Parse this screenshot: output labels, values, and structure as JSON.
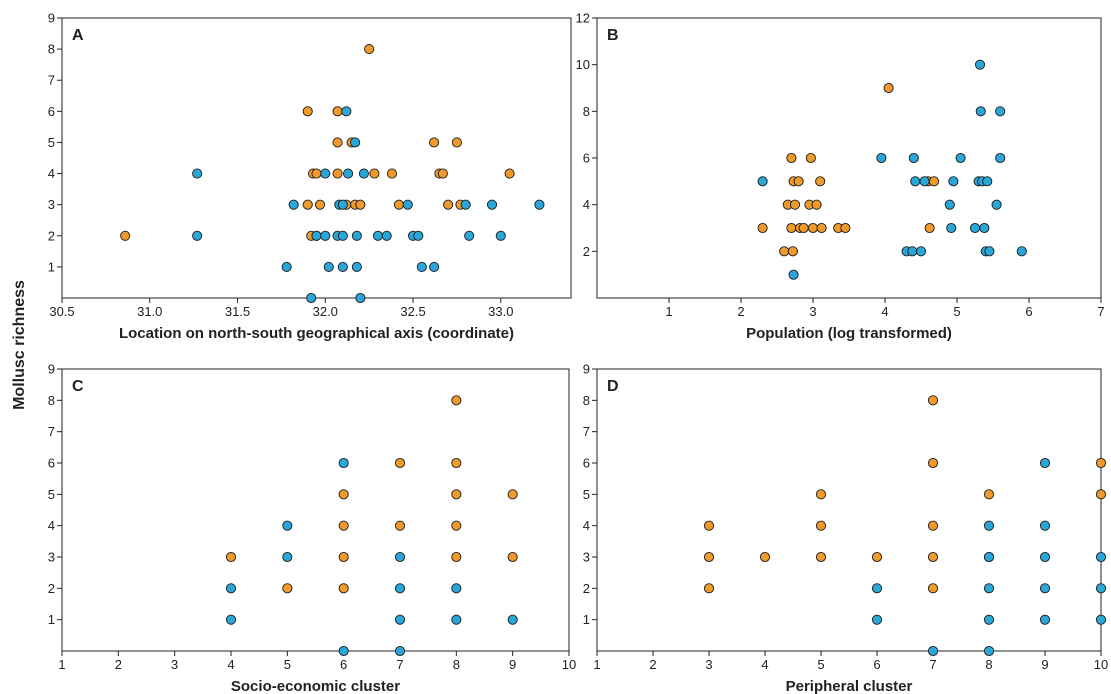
{
  "shared_ylabel": "Mollusc richness",
  "colors": {
    "orange": "#ef9a2a",
    "blue": "#2aa7d8",
    "stroke": "#1c1c1c"
  },
  "chart_data": [
    {
      "type": "scatter",
      "panel": "A",
      "xlabel": "Location on north-south geographical axis (coordinate)",
      "ylabel": "",
      "xlim": [
        30.5,
        33.4
      ],
      "ylim": [
        0,
        9
      ],
      "xticks": [
        30.5,
        31.0,
        31.5,
        32.0,
        32.5,
        33.0
      ],
      "xtick_labels": [
        "30.5",
        "31.0",
        "31.5",
        "32.0",
        "32.5",
        "33.0"
      ],
      "yticks": [
        1,
        2,
        3,
        4,
        5,
        6,
        7,
        8,
        9
      ],
      "grid": false,
      "series": [
        {
          "color": "orange",
          "points": [
            [
              30.86,
              2
            ],
            [
              31.9,
              6
            ],
            [
              31.9,
              3
            ],
            [
              31.93,
              4
            ],
            [
              31.95,
              4
            ],
            [
              31.92,
              2
            ],
            [
              31.95,
              2
            ],
            [
              31.97,
              3
            ],
            [
              32.07,
              6
            ],
            [
              32.07,
              5
            ],
            [
              32.07,
              4
            ],
            [
              32.12,
              3
            ],
            [
              32.15,
              5
            ],
            [
              32.17,
              3
            ],
            [
              32.2,
              3
            ],
            [
              32.25,
              8
            ],
            [
              32.28,
              4
            ],
            [
              32.38,
              4
            ],
            [
              32.42,
              3
            ],
            [
              32.62,
              5
            ],
            [
              32.65,
              4
            ],
            [
              32.67,
              4
            ],
            [
              32.7,
              3
            ],
            [
              32.75,
              5
            ],
            [
              32.77,
              3
            ],
            [
              33.05,
              4
            ]
          ]
        },
        {
          "color": "blue",
          "points": [
            [
              31.27,
              4
            ],
            [
              31.27,
              2
            ],
            [
              31.78,
              1
            ],
            [
              31.82,
              3
            ],
            [
              31.92,
              0
            ],
            [
              31.95,
              2
            ],
            [
              32.0,
              4
            ],
            [
              32.0,
              2
            ],
            [
              32.02,
              1
            ],
            [
              32.07,
              2
            ],
            [
              32.08,
              3
            ],
            [
              32.1,
              3
            ],
            [
              32.1,
              1
            ],
            [
              32.1,
              2
            ],
            [
              32.13,
              4
            ],
            [
              32.12,
              6
            ],
            [
              32.17,
              5
            ],
            [
              32.18,
              2
            ],
            [
              32.18,
              1
            ],
            [
              32.2,
              0
            ],
            [
              32.22,
              4
            ],
            [
              32.3,
              2
            ],
            [
              32.35,
              2
            ],
            [
              32.47,
              3
            ],
            [
              32.5,
              2
            ],
            [
              32.53,
              2
            ],
            [
              32.55,
              1
            ],
            [
              32.62,
              1
            ],
            [
              32.8,
              3
            ],
            [
              32.82,
              2
            ],
            [
              32.95,
              3
            ],
            [
              33.0,
              2
            ],
            [
              33.22,
              3
            ]
          ]
        }
      ]
    },
    {
      "type": "scatter",
      "panel": "B",
      "xlabel": "Population (log transformed)",
      "ylabel": "",
      "xlim": [
        0,
        7
      ],
      "ylim": [
        0,
        12
      ],
      "xticks": [
        1,
        2,
        3,
        4,
        5,
        6,
        7
      ],
      "xtick_labels": [
        "1",
        "2",
        "3",
        "4",
        "5",
        "6",
        "7"
      ],
      "yticks": [
        2,
        4,
        6,
        8,
        10,
        12
      ],
      "grid": false,
      "series": [
        {
          "color": "orange",
          "points": [
            [
              2.3,
              3
            ],
            [
              2.6,
              2
            ],
            [
              2.65,
              4
            ],
            [
              2.7,
              6
            ],
            [
              2.7,
              3
            ],
            [
              2.72,
              2
            ],
            [
              2.73,
              5
            ],
            [
              2.75,
              4
            ],
            [
              2.8,
              5
            ],
            [
              2.82,
              3
            ],
            [
              2.87,
              3
            ],
            [
              2.95,
              4
            ],
            [
              2.97,
              6
            ],
            [
              3.0,
              3
            ],
            [
              3.05,
              4
            ],
            [
              3.1,
              5
            ],
            [
              3.12,
              3
            ],
            [
              3.35,
              3
            ],
            [
              3.45,
              3
            ],
            [
              4.05,
              9
            ],
            [
              4.6,
              5
            ],
            [
              4.62,
              3
            ],
            [
              4.68,
              5
            ]
          ]
        },
        {
          "color": "blue",
          "points": [
            [
              2.3,
              5
            ],
            [
              2.73,
              1
            ],
            [
              3.95,
              6
            ],
            [
              4.3,
              2
            ],
            [
              4.38,
              2
            ],
            [
              4.4,
              6
            ],
            [
              4.42,
              5
            ],
            [
              4.5,
              2
            ],
            [
              4.55,
              5
            ],
            [
              4.9,
              4
            ],
            [
              4.92,
              3
            ],
            [
              4.95,
              5
            ],
            [
              5.05,
              6
            ],
            [
              5.25,
              3
            ],
            [
              5.3,
              5
            ],
            [
              5.32,
              10
            ],
            [
              5.33,
              8
            ],
            [
              5.35,
              5
            ],
            [
              5.38,
              3
            ],
            [
              5.4,
              2
            ],
            [
              5.42,
              5
            ],
            [
              5.45,
              2
            ],
            [
              5.55,
              4
            ],
            [
              5.6,
              6
            ],
            [
              5.6,
              8
            ],
            [
              5.9,
              2
            ]
          ]
        }
      ]
    },
    {
      "type": "scatter",
      "panel": "C",
      "xlabel": "Socio-economic cluster",
      "ylabel": "",
      "xlim": [
        1,
        10
      ],
      "ylim": [
        0,
        9
      ],
      "xticks": [
        1,
        2,
        3,
        4,
        5,
        6,
        7,
        8,
        9,
        10
      ],
      "xtick_labels": [
        "1",
        "2",
        "3",
        "4",
        "5",
        "6",
        "7",
        "8",
        "9",
        "10"
      ],
      "yticks": [
        1,
        2,
        3,
        4,
        5,
        6,
        7,
        8,
        9
      ],
      "grid": false,
      "series": [
        {
          "color": "orange",
          "points": [
            [
              4,
              3
            ],
            [
              5,
              2
            ],
            [
              6,
              5
            ],
            [
              6,
              4
            ],
            [
              6,
              3
            ],
            [
              6,
              2
            ],
            [
              7,
              6
            ],
            [
              7,
              4
            ],
            [
              8,
              8
            ],
            [
              8,
              6
            ],
            [
              8,
              5
            ],
            [
              8,
              4
            ],
            [
              8,
              3
            ],
            [
              9,
              5
            ],
            [
              9,
              3
            ]
          ]
        },
        {
          "color": "blue",
          "points": [
            [
              4,
              2
            ],
            [
              4,
              1
            ],
            [
              5,
              4
            ],
            [
              5,
              3
            ],
            [
              6,
              6
            ],
            [
              6,
              0
            ],
            [
              7,
              3
            ],
            [
              7,
              2
            ],
            [
              7,
              1
            ],
            [
              7,
              0
            ],
            [
              8,
              2
            ],
            [
              8,
              1
            ],
            [
              9,
              1
            ]
          ]
        }
      ]
    },
    {
      "type": "scatter",
      "panel": "D",
      "xlabel": "Peripheral cluster",
      "ylabel": "",
      "xlim": [
        1,
        10
      ],
      "ylim": [
        0,
        9
      ],
      "xticks": [
        1,
        2,
        3,
        4,
        5,
        6,
        7,
        8,
        9,
        10
      ],
      "xtick_labels": [
        "1",
        "2",
        "3",
        "4",
        "5",
        "6",
        "7",
        "8",
        "9",
        "10"
      ],
      "yticks": [
        1,
        2,
        3,
        4,
        5,
        6,
        7,
        8,
        9
      ],
      "grid": false,
      "series": [
        {
          "color": "orange",
          "points": [
            [
              3,
              4
            ],
            [
              3,
              3
            ],
            [
              3,
              2
            ],
            [
              4,
              3
            ],
            [
              5,
              5
            ],
            [
              5,
              4
            ],
            [
              5,
              3
            ],
            [
              6,
              3
            ],
            [
              7,
              8
            ],
            [
              7,
              6
            ],
            [
              7,
              4
            ],
            [
              7,
              3
            ],
            [
              7,
              2
            ],
            [
              8,
              5
            ],
            [
              8,
              3
            ],
            [
              10,
              6
            ],
            [
              10,
              5
            ]
          ]
        },
        {
          "color": "blue",
          "points": [
            [
              6,
              2
            ],
            [
              6,
              1
            ],
            [
              7,
              0
            ],
            [
              8,
              4
            ],
            [
              8,
              3
            ],
            [
              8,
              2
            ],
            [
              8,
              1
            ],
            [
              8,
              0
            ],
            [
              9,
              6
            ],
            [
              9,
              4
            ],
            [
              9,
              3
            ],
            [
              9,
              2
            ],
            [
              9,
              1
            ],
            [
              10,
              3
            ],
            [
              10,
              2
            ],
            [
              10,
              1
            ]
          ]
        }
      ]
    }
  ]
}
